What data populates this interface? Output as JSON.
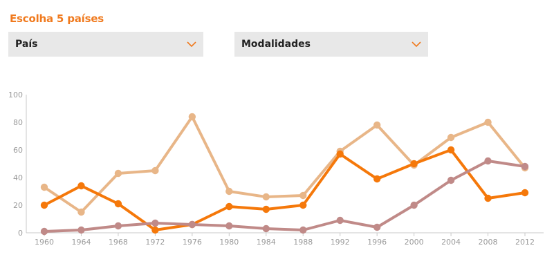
{
  "header": {
    "title": "Escolha 5 países"
  },
  "filters": {
    "country_label": "País",
    "modality_label": "Modalidades"
  },
  "colors": {
    "accent": "#f07a1e",
    "select_bg": "#e8e8e8",
    "axis": "#c8c8c8",
    "tick_text": "#9a9a9a"
  },
  "chart_data": {
    "type": "line",
    "x": [
      "1960",
      "1964",
      "1968",
      "1972",
      "1976",
      "1980",
      "1984",
      "1988",
      "1992",
      "1996",
      "2000",
      "2004",
      "2008",
      "2012"
    ],
    "ylim": [
      0,
      100
    ],
    "yticks": [
      "0",
      "20",
      "40",
      "60",
      "80",
      "100"
    ],
    "grid": false,
    "series": [
      {
        "color": "#e8b688",
        "values": [
          33,
          15,
          43,
          45,
          84,
          30,
          26,
          27,
          59,
          78,
          49,
          69,
          80,
          47
        ]
      },
      {
        "color": "#f5780a",
        "values": [
          20,
          34,
          21,
          2,
          6,
          19,
          17,
          20,
          57,
          39,
          50,
          60,
          25,
          29
        ]
      },
      {
        "color": "#c08a88",
        "values": [
          1,
          2,
          5,
          7,
          6,
          5,
          3,
          2,
          9,
          4,
          20,
          38,
          52,
          48
        ]
      }
    ]
  }
}
